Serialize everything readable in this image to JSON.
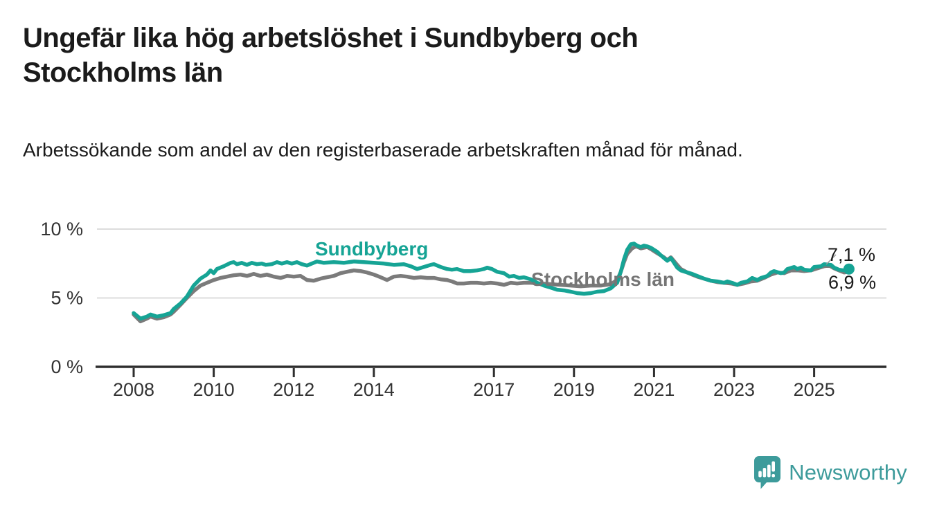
{
  "header": {
    "title": "Ungefär lika hög arbetslöshet i Sundbyberg och Stockholms län",
    "subtitle": "Arbetssökande som andel av den registerbaserade arbetskraften månad för månad."
  },
  "chart_data": {
    "type": "line",
    "unit": "%",
    "ylim": [
      0,
      10
    ],
    "xlim": [
      2007.1,
      2026.8
    ],
    "grid": "horizontal-light",
    "legend_position": "inline-labels",
    "y_ticks": [
      {
        "value": 0,
        "label": "0 %"
      },
      {
        "value": 5,
        "label": "5 %"
      },
      {
        "value": 10,
        "label": "10 %"
      }
    ],
    "x_ticks": [
      {
        "value": 2008,
        "label": "2008"
      },
      {
        "value": 2010,
        "label": "2010"
      },
      {
        "value": 2012,
        "label": "2012"
      },
      {
        "value": 2014,
        "label": "2014"
      },
      {
        "value": 2017,
        "label": "2017"
      },
      {
        "value": 2019,
        "label": "2019"
      },
      {
        "value": 2021,
        "label": "2021"
      },
      {
        "value": 2023,
        "label": "2023"
      },
      {
        "value": 2025,
        "label": "2025"
      }
    ],
    "series": [
      {
        "name": "Sundbyberg",
        "color": "#16a495",
        "end_value": 7.1,
        "end_label": "7,1 %",
        "points": [
          [
            2008.0,
            3.9
          ],
          [
            2008.17,
            3.5
          ],
          [
            2008.33,
            3.65
          ],
          [
            2008.42,
            3.8
          ],
          [
            2008.58,
            3.65
          ],
          [
            2008.75,
            3.75
          ],
          [
            2008.92,
            3.9
          ],
          [
            2009.0,
            4.2
          ],
          [
            2009.17,
            4.6
          ],
          [
            2009.33,
            5.1
          ],
          [
            2009.5,
            5.9
          ],
          [
            2009.67,
            6.4
          ],
          [
            2009.83,
            6.7
          ],
          [
            2009.92,
            7.0
          ],
          [
            2010.0,
            6.8
          ],
          [
            2010.08,
            7.1
          ],
          [
            2010.25,
            7.3
          ],
          [
            2010.42,
            7.55
          ],
          [
            2010.5,
            7.6
          ],
          [
            2010.58,
            7.45
          ],
          [
            2010.7,
            7.55
          ],
          [
            2010.83,
            7.4
          ],
          [
            2010.95,
            7.55
          ],
          [
            2011.08,
            7.45
          ],
          [
            2011.2,
            7.5
          ],
          [
            2011.3,
            7.4
          ],
          [
            2011.45,
            7.45
          ],
          [
            2011.58,
            7.6
          ],
          [
            2011.7,
            7.5
          ],
          [
            2011.83,
            7.6
          ],
          [
            2011.95,
            7.5
          ],
          [
            2012.08,
            7.6
          ],
          [
            2012.2,
            7.45
          ],
          [
            2012.33,
            7.35
          ],
          [
            2012.45,
            7.5
          ],
          [
            2012.58,
            7.65
          ],
          [
            2012.75,
            7.55
          ],
          [
            2013.0,
            7.6
          ],
          [
            2013.25,
            7.55
          ],
          [
            2013.5,
            7.65
          ],
          [
            2013.75,
            7.6
          ],
          [
            2014.0,
            7.55
          ],
          [
            2014.25,
            7.5
          ],
          [
            2014.5,
            7.4
          ],
          [
            2014.75,
            7.45
          ],
          [
            2014.92,
            7.3
          ],
          [
            2015.08,
            7.1
          ],
          [
            2015.25,
            7.25
          ],
          [
            2015.42,
            7.4
          ],
          [
            2015.5,
            7.45
          ],
          [
            2015.67,
            7.25
          ],
          [
            2015.83,
            7.1
          ],
          [
            2015.95,
            7.05
          ],
          [
            2016.08,
            7.1
          ],
          [
            2016.25,
            6.95
          ],
          [
            2016.42,
            6.95
          ],
          [
            2016.58,
            7.0
          ],
          [
            2016.75,
            7.1
          ],
          [
            2016.83,
            7.2
          ],
          [
            2016.95,
            7.1
          ],
          [
            2017.08,
            6.9
          ],
          [
            2017.25,
            6.8
          ],
          [
            2017.38,
            6.55
          ],
          [
            2017.5,
            6.6
          ],
          [
            2017.63,
            6.45
          ],
          [
            2017.75,
            6.5
          ],
          [
            2017.92,
            6.35
          ],
          [
            2018.08,
            6.1
          ],
          [
            2018.25,
            5.9
          ],
          [
            2018.42,
            5.75
          ],
          [
            2018.58,
            5.6
          ],
          [
            2018.75,
            5.55
          ],
          [
            2018.92,
            5.45
          ],
          [
            2019.08,
            5.35
          ],
          [
            2019.25,
            5.3
          ],
          [
            2019.42,
            5.35
          ],
          [
            2019.58,
            5.45
          ],
          [
            2019.75,
            5.5
          ],
          [
            2019.92,
            5.7
          ],
          [
            2020.08,
            6.1
          ],
          [
            2020.17,
            6.9
          ],
          [
            2020.25,
            7.8
          ],
          [
            2020.33,
            8.5
          ],
          [
            2020.42,
            8.9
          ],
          [
            2020.5,
            8.95
          ],
          [
            2020.58,
            8.8
          ],
          [
            2020.67,
            8.7
          ],
          [
            2020.75,
            8.8
          ],
          [
            2020.83,
            8.75
          ],
          [
            2020.92,
            8.65
          ],
          [
            2021.0,
            8.5
          ],
          [
            2021.08,
            8.35
          ],
          [
            2021.17,
            8.1
          ],
          [
            2021.25,
            7.9
          ],
          [
            2021.33,
            7.7
          ],
          [
            2021.42,
            7.9
          ],
          [
            2021.5,
            7.55
          ],
          [
            2021.58,
            7.2
          ],
          [
            2021.67,
            7.0
          ],
          [
            2021.83,
            6.85
          ],
          [
            2021.95,
            6.75
          ],
          [
            2022.08,
            6.6
          ],
          [
            2022.25,
            6.4
          ],
          [
            2022.42,
            6.25
          ],
          [
            2022.58,
            6.2
          ],
          [
            2022.75,
            6.1
          ],
          [
            2022.83,
            6.2
          ],
          [
            2022.95,
            6.1
          ],
          [
            2023.08,
            5.95
          ],
          [
            2023.17,
            6.1
          ],
          [
            2023.33,
            6.2
          ],
          [
            2023.45,
            6.45
          ],
          [
            2023.58,
            6.3
          ],
          [
            2023.67,
            6.45
          ],
          [
            2023.83,
            6.6
          ],
          [
            2023.92,
            6.85
          ],
          [
            2024.0,
            6.95
          ],
          [
            2024.17,
            6.8
          ],
          [
            2024.25,
            6.85
          ],
          [
            2024.33,
            7.1
          ],
          [
            2024.5,
            7.25
          ],
          [
            2024.58,
            7.1
          ],
          [
            2024.67,
            7.2
          ],
          [
            2024.75,
            7.05
          ],
          [
            2024.92,
            7.0
          ],
          [
            2025.0,
            7.25
          ],
          [
            2025.17,
            7.3
          ],
          [
            2025.25,
            7.45
          ],
          [
            2025.42,
            7.4
          ],
          [
            2025.5,
            7.2
          ],
          [
            2025.62,
            7.05
          ],
          [
            2025.75,
            7.0
          ],
          [
            2025.87,
            7.1
          ]
        ]
      },
      {
        "name": "Stockholms län",
        "color": "#7b7b7b",
        "end_value": 6.9,
        "end_label": "6,9 %",
        "points": [
          [
            2008.0,
            3.8
          ],
          [
            2008.17,
            3.3
          ],
          [
            2008.33,
            3.5
          ],
          [
            2008.42,
            3.65
          ],
          [
            2008.58,
            3.5
          ],
          [
            2008.75,
            3.6
          ],
          [
            2008.92,
            3.8
          ],
          [
            2009.0,
            4.0
          ],
          [
            2009.17,
            4.5
          ],
          [
            2009.33,
            5.0
          ],
          [
            2009.5,
            5.5
          ],
          [
            2009.67,
            5.9
          ],
          [
            2009.83,
            6.1
          ],
          [
            2010.0,
            6.3
          ],
          [
            2010.17,
            6.45
          ],
          [
            2010.33,
            6.55
          ],
          [
            2010.5,
            6.65
          ],
          [
            2010.67,
            6.7
          ],
          [
            2010.83,
            6.6
          ],
          [
            2011.0,
            6.75
          ],
          [
            2011.17,
            6.6
          ],
          [
            2011.33,
            6.7
          ],
          [
            2011.5,
            6.55
          ],
          [
            2011.67,
            6.45
          ],
          [
            2011.83,
            6.6
          ],
          [
            2012.0,
            6.55
          ],
          [
            2012.17,
            6.6
          ],
          [
            2012.33,
            6.3
          ],
          [
            2012.5,
            6.25
          ],
          [
            2012.67,
            6.4
          ],
          [
            2012.83,
            6.5
          ],
          [
            2013.0,
            6.6
          ],
          [
            2013.17,
            6.8
          ],
          [
            2013.33,
            6.9
          ],
          [
            2013.5,
            7.0
          ],
          [
            2013.67,
            6.95
          ],
          [
            2013.83,
            6.85
          ],
          [
            2014.0,
            6.7
          ],
          [
            2014.17,
            6.5
          ],
          [
            2014.33,
            6.3
          ],
          [
            2014.5,
            6.55
          ],
          [
            2014.67,
            6.6
          ],
          [
            2014.83,
            6.55
          ],
          [
            2015.0,
            6.45
          ],
          [
            2015.17,
            6.5
          ],
          [
            2015.33,
            6.45
          ],
          [
            2015.5,
            6.45
          ],
          [
            2015.67,
            6.35
          ],
          [
            2015.83,
            6.3
          ],
          [
            2015.95,
            6.2
          ],
          [
            2016.08,
            6.05
          ],
          [
            2016.25,
            6.05
          ],
          [
            2016.42,
            6.1
          ],
          [
            2016.58,
            6.1
          ],
          [
            2016.75,
            6.05
          ],
          [
            2016.92,
            6.1
          ],
          [
            2017.08,
            6.05
          ],
          [
            2017.25,
            5.95
          ],
          [
            2017.42,
            6.1
          ],
          [
            2017.58,
            6.05
          ],
          [
            2017.75,
            6.1
          ],
          [
            2017.92,
            6.1
          ],
          [
            2018.17,
            6.05
          ],
          [
            2018.42,
            6.0
          ],
          [
            2018.67,
            5.95
          ],
          [
            2018.92,
            5.9
          ],
          [
            2019.17,
            5.85
          ],
          [
            2019.42,
            5.9
          ],
          [
            2019.67,
            5.9
          ],
          [
            2019.92,
            6.0
          ],
          [
            2020.08,
            6.3
          ],
          [
            2020.17,
            6.9
          ],
          [
            2020.25,
            7.6
          ],
          [
            2020.33,
            8.2
          ],
          [
            2020.45,
            8.6
          ],
          [
            2020.55,
            8.75
          ],
          [
            2020.67,
            8.6
          ],
          [
            2020.83,
            8.7
          ],
          [
            2020.95,
            8.5
          ],
          [
            2021.08,
            8.25
          ],
          [
            2021.25,
            7.95
          ],
          [
            2021.33,
            7.75
          ],
          [
            2021.42,
            7.95
          ],
          [
            2021.55,
            7.5
          ],
          [
            2021.67,
            7.1
          ],
          [
            2021.83,
            6.85
          ],
          [
            2021.95,
            6.7
          ],
          [
            2022.08,
            6.55
          ],
          [
            2022.25,
            6.4
          ],
          [
            2022.42,
            6.25
          ],
          [
            2022.58,
            6.15
          ],
          [
            2022.75,
            6.1
          ],
          [
            2022.92,
            6.05
          ],
          [
            2023.08,
            5.95
          ],
          [
            2023.25,
            6.05
          ],
          [
            2023.42,
            6.2
          ],
          [
            2023.58,
            6.25
          ],
          [
            2023.75,
            6.45
          ],
          [
            2023.92,
            6.7
          ],
          [
            2024.08,
            6.85
          ],
          [
            2024.25,
            6.8
          ],
          [
            2024.42,
            7.0
          ],
          [
            2024.58,
            7.0
          ],
          [
            2024.75,
            6.95
          ],
          [
            2024.92,
            7.0
          ],
          [
            2025.08,
            7.15
          ],
          [
            2025.25,
            7.3
          ],
          [
            2025.38,
            7.35
          ],
          [
            2025.5,
            7.15
          ],
          [
            2025.62,
            7.0
          ],
          [
            2025.75,
            6.85
          ],
          [
            2025.87,
            6.9
          ]
        ]
      }
    ]
  },
  "colors": {
    "accent_teal": "#16a495",
    "series_gray": "#7b7b7b",
    "axis": "#2e2e2e",
    "gridline": "#dcdcdc",
    "brand_teal": "#3d9b9b"
  },
  "branding": {
    "name": "Newsworthy",
    "logo_icon": "speech-bubble-bar-chart"
  }
}
